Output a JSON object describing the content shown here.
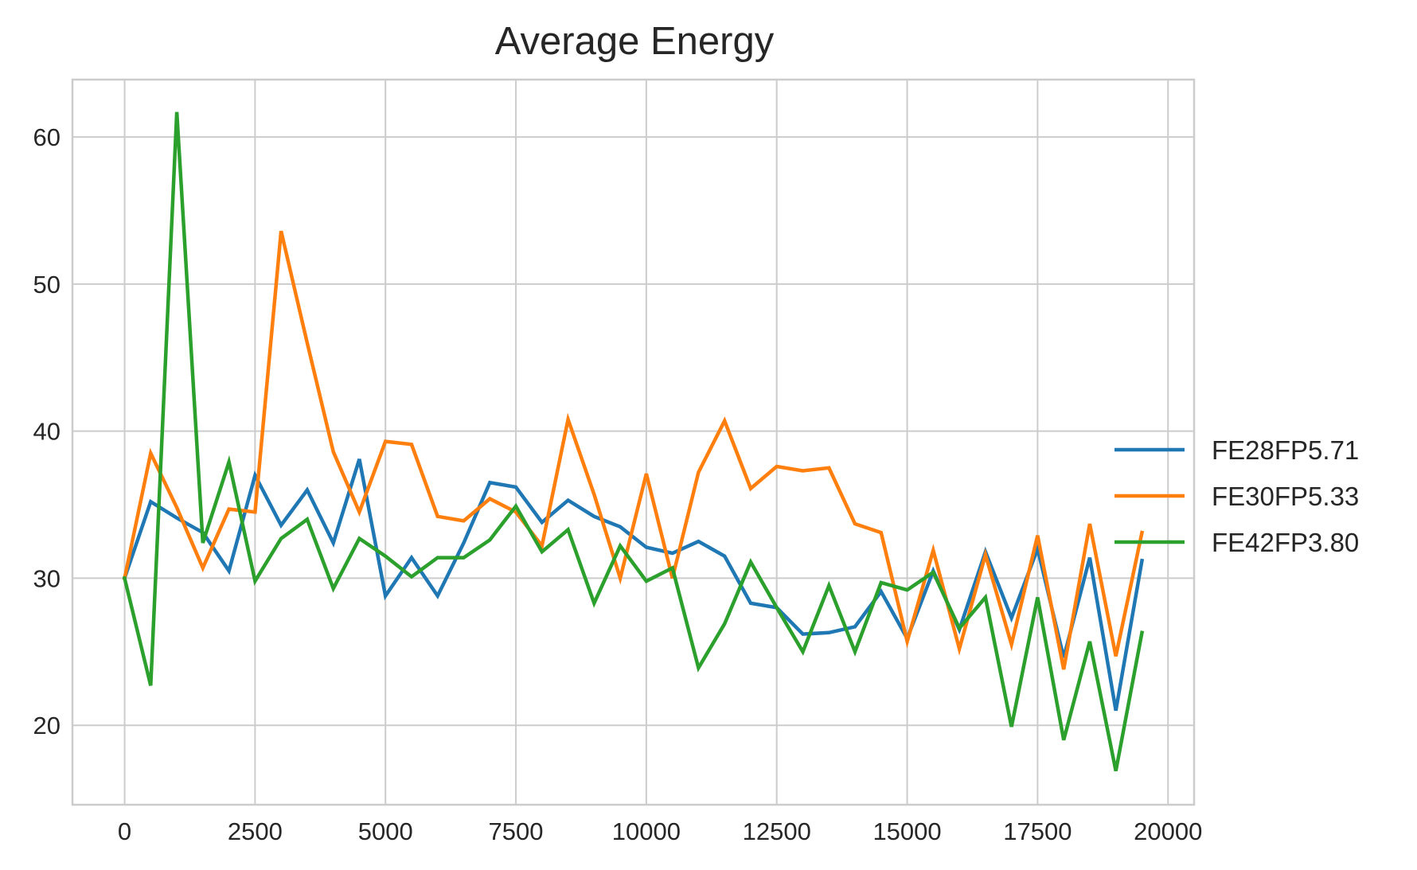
{
  "chart_data": {
    "type": "line",
    "title": "Average Energy",
    "xlabel": "",
    "ylabel": "",
    "xlim": [
      -1000,
      20500
    ],
    "ylim": [
      14.6,
      63.9
    ],
    "xticks": [
      0,
      2500,
      5000,
      7500,
      10000,
      12500,
      15000,
      17500,
      20000
    ],
    "yticks": [
      20,
      30,
      40,
      50,
      60
    ],
    "grid": true,
    "legend_position": "center-right-outside",
    "x": [
      0,
      500,
      1000,
      1500,
      2000,
      2500,
      3000,
      3500,
      4000,
      4500,
      5000,
      5500,
      6000,
      6500,
      7000,
      7500,
      8000,
      8500,
      9000,
      9500,
      10000,
      10500,
      11000,
      11500,
      12000,
      12500,
      13000,
      13500,
      14000,
      14500,
      15000,
      15500,
      16000,
      16500,
      17000,
      17500,
      18000,
      18500,
      19000,
      19500
    ],
    "series": [
      {
        "name": "FE28FP5.71",
        "color": "#1f77b4",
        "values": [
          30.0,
          35.2,
          34.1,
          33.1,
          30.5,
          37.0,
          33.6,
          36.0,
          32.4,
          38.1,
          28.8,
          31.4,
          28.8,
          32.4,
          36.5,
          36.2,
          33.8,
          35.3,
          34.2,
          33.5,
          32.1,
          31.7,
          32.5,
          31.5,
          28.3,
          28.0,
          26.2,
          26.3,
          26.7,
          29.1,
          25.9,
          30.5,
          26.5,
          31.8,
          27.3,
          32.0,
          24.6,
          31.4,
          21.0,
          31.2
        ]
      },
      {
        "name": "FE30FP5.33",
        "color": "#ff7f0e",
        "values": [
          30.0,
          38.5,
          34.8,
          30.7,
          34.7,
          34.5,
          53.6,
          46.0,
          38.6,
          34.5,
          39.3,
          39.1,
          34.2,
          33.9,
          35.4,
          34.5,
          32.2,
          40.8,
          35.7,
          30.0,
          37.1,
          30.0,
          37.2,
          40.7,
          36.1,
          37.6,
          37.3,
          37.5,
          33.7,
          33.1,
          25.7,
          31.9,
          25.2,
          31.6,
          25.5,
          32.9,
          23.8,
          33.7,
          24.7,
          33.1
        ]
      },
      {
        "name": "FE42FP3.80",
        "color": "#2ca02c",
        "values": [
          30.0,
          22.7,
          61.7,
          32.4,
          37.9,
          29.8,
          32.7,
          34.0,
          29.3,
          32.7,
          31.5,
          30.1,
          31.4,
          31.4,
          32.6,
          34.9,
          31.8,
          33.3,
          28.3,
          32.2,
          29.8,
          30.7,
          23.9,
          26.9,
          31.1,
          28.0,
          25.0,
          29.5,
          25.0,
          29.7,
          29.2,
          30.4,
          26.6,
          28.7,
          19.9,
          28.7,
          19.0,
          25.7,
          16.9,
          26.3
        ]
      }
    ]
  }
}
